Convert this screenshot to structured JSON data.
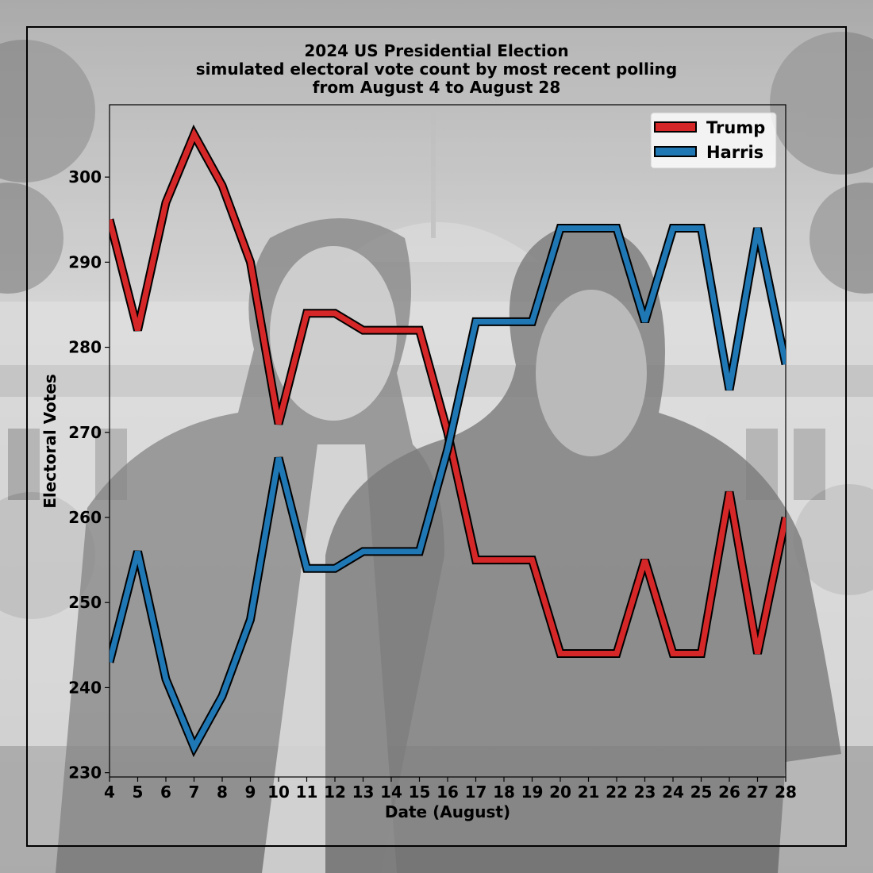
{
  "chart_data": {
    "type": "line",
    "title": [
      "2024 US Presidential Election",
      "simulated electoral vote count by most recent polling",
      "from August 4 to August 28"
    ],
    "xlabel": "Date (August)",
    "ylabel": "Electoral Votes",
    "x": [
      4,
      5,
      6,
      7,
      8,
      9,
      10,
      11,
      12,
      13,
      14,
      15,
      16,
      17,
      18,
      19,
      20,
      21,
      22,
      23,
      24,
      25,
      26,
      27,
      28
    ],
    "xlim": [
      4,
      28
    ],
    "ylim": [
      229.5,
      308.5
    ],
    "yticks": [
      230,
      240,
      250,
      260,
      270,
      280,
      290,
      300
    ],
    "grid": false,
    "legend_position": "top-right",
    "series": [
      {
        "name": "Trump",
        "color": "#d62728",
        "values": [
          295,
          282,
          297,
          305,
          299,
          290,
          271,
          284,
          284,
          282,
          282,
          282,
          270,
          255,
          255,
          255,
          244,
          244,
          244,
          255,
          244,
          244,
          263,
          244,
          260
        ]
      },
      {
        "name": "Harris",
        "color": "#1f77b4",
        "values": [
          243,
          256,
          241,
          233,
          239,
          248,
          267,
          254,
          254,
          256,
          256,
          256,
          268,
          283,
          283,
          283,
          294,
          294,
          294,
          283,
          294,
          294,
          275,
          294,
          278
        ]
      }
    ]
  },
  "background": {
    "description_icon": "white-house-photo"
  }
}
